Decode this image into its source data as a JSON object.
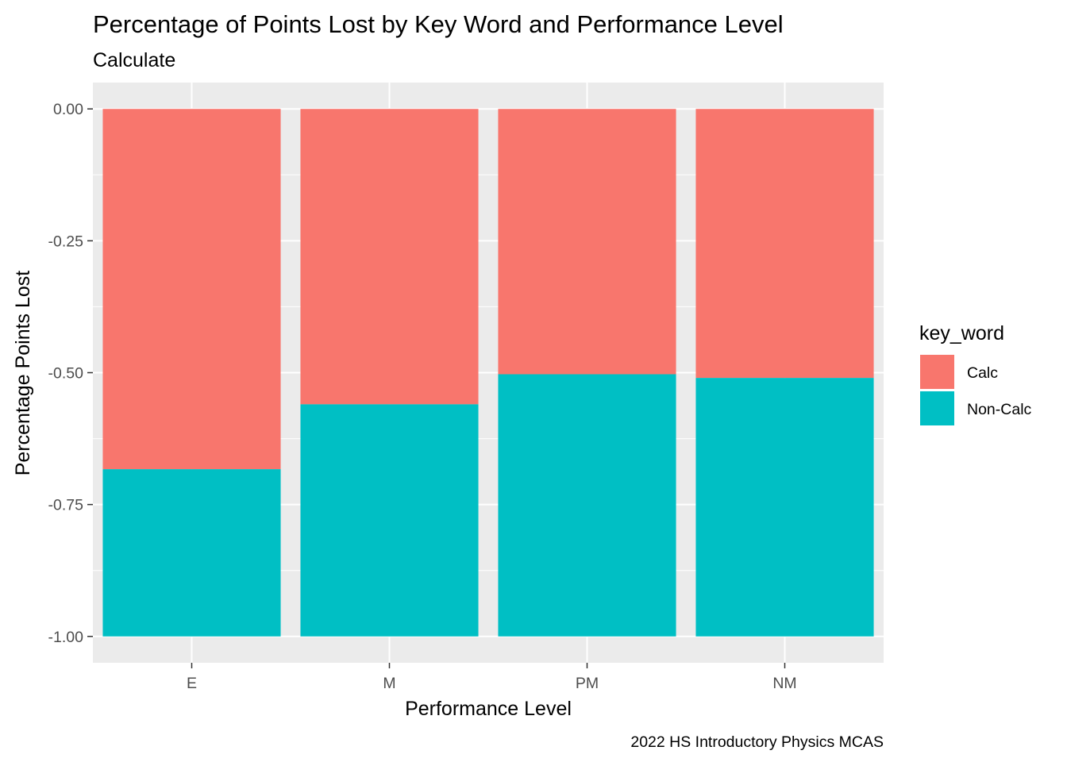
{
  "chart_data": {
    "type": "bar",
    "stacked": true,
    "title": "Percentage of Points Lost by Key Word and Performance Level",
    "subtitle": "Calculate",
    "xlabel": "Performance Level",
    "ylabel": "Percentage Points Lost",
    "caption": "2022 HS Introductory Physics MCAS",
    "categories": [
      "E",
      "M",
      "PM",
      "NM"
    ],
    "series": [
      {
        "name": "Calc",
        "color": "#F8766D",
        "values": [
          -0.683,
          -0.56,
          -0.503,
          -0.51
        ]
      },
      {
        "name": "Non-Calc",
        "color": "#00BFC4",
        "values": [
          -0.317,
          -0.44,
          -0.497,
          -0.49
        ]
      }
    ],
    "ylim": [
      -1.05,
      0.05
    ],
    "yticks": [
      0.0,
      -0.25,
      -0.5,
      -0.75,
      -1.0
    ],
    "ytick_labels": [
      "0.00",
      "-0.25",
      "-0.50",
      "-0.75",
      "-1.00"
    ],
    "grid": true,
    "panel_background": "#EBEBEB",
    "legend": {
      "title": "key_word",
      "position": "right"
    }
  }
}
